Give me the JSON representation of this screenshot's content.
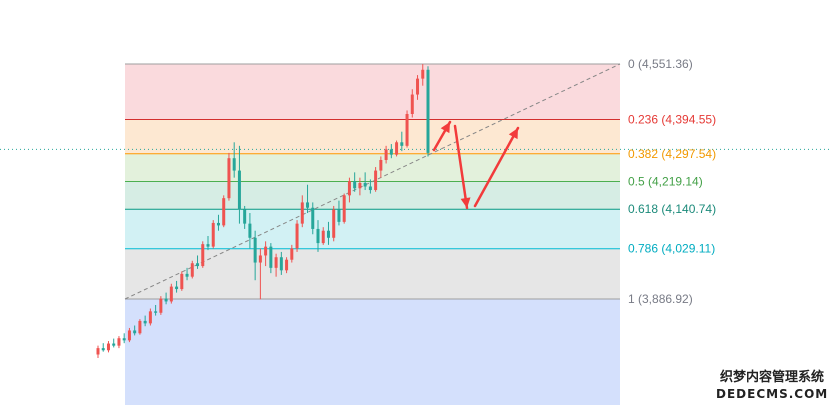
{
  "chart_data": {
    "type": "candlestick",
    "fib_levels": [
      {
        "ratio": "0",
        "price": "4,551.36",
        "value": 4551.36,
        "line_color": "#9e9e9e",
        "label_color": "#787b86",
        "fill": "#fadadd"
      },
      {
        "ratio": "0.236",
        "price": "4,394.55",
        "value": 4394.55,
        "line_color": "#d32f2f",
        "label_color": "#e53935",
        "fill": "#fde8d2"
      },
      {
        "ratio": "0.382",
        "price": "4,297.54",
        "value": 4297.54,
        "line_color": "#ff9800",
        "label_color": "#f29900",
        "fill": "#e3f1dc"
      },
      {
        "ratio": "0.5",
        "price": "4,219.14",
        "value": 4219.14,
        "line_color": "#4caf50",
        "label_color": "#43a047",
        "fill": "#d6ede4"
      },
      {
        "ratio": "0.618",
        "price": "4,140.74",
        "value": 4140.74,
        "line_color": "#089981",
        "label_color": "#1b8a7a",
        "fill": "#d2f1f4"
      },
      {
        "ratio": "0.786",
        "price": "4,029.11",
        "value": 4029.11,
        "line_color": "#00bcd4",
        "label_color": "#00acc1",
        "fill": "#e6e6e6"
      },
      {
        "ratio": "1",
        "price": "3,886.92",
        "value": 3886.92,
        "line_color": "#9e9e9e",
        "label_color": "#787b86",
        "fill": "#d4e0fc"
      }
    ],
    "price_range": [
      3700,
      4551.36
    ],
    "current_price": 4310,
    "candles": [
      [
        3730,
        3755,
        3720,
        3748
      ],
      [
        3748,
        3762,
        3738,
        3742
      ],
      [
        3742,
        3768,
        3736,
        3761
      ],
      [
        3761,
        3775,
        3750,
        3755
      ],
      [
        3755,
        3782,
        3748,
        3776
      ],
      [
        3776,
        3790,
        3762,
        3770
      ],
      [
        3770,
        3805,
        3765,
        3798
      ],
      [
        3798,
        3812,
        3784,
        3790
      ],
      [
        3790,
        3830,
        3786,
        3825
      ],
      [
        3825,
        3840,
        3810,
        3818
      ],
      [
        3818,
        3860,
        3812,
        3852
      ],
      [
        3852,
        3870,
        3840,
        3848
      ],
      [
        3848,
        3895,
        3842,
        3888
      ],
      [
        3888,
        3905,
        3872,
        3880
      ],
      [
        3880,
        3930,
        3874,
        3922
      ],
      [
        3922,
        3938,
        3905,
        3915
      ],
      [
        3915,
        3965,
        3910,
        3958
      ],
      [
        3958,
        3975,
        3940,
        3950
      ],
      [
        3950,
        3995,
        3945,
        3988
      ],
      [
        3988,
        4010,
        3972,
        3980
      ],
      [
        3980,
        4050,
        3975,
        4042
      ],
      [
        4042,
        4065,
        4025,
        4035
      ],
      [
        4035,
        4110,
        4030,
        4102
      ],
      [
        4102,
        4125,
        4080,
        4095
      ],
      [
        4095,
        4180,
        4090,
        4172
      ],
      [
        4172,
        4300,
        4165,
        4285
      ],
      [
        4285,
        4330,
        4230,
        4250
      ],
      [
        4250,
        4320,
        4100,
        4140
      ],
      [
        4140,
        4150,
        4085,
        4100
      ],
      [
        4100,
        4130,
        4030,
        4060
      ],
      [
        4060,
        4080,
        3940,
        3990
      ],
      [
        3990,
        4030,
        3886,
        4010
      ],
      [
        4010,
        4050,
        3980,
        4035
      ],
      [
        4035,
        4045,
        3960,
        3975
      ],
      [
        3975,
        4015,
        3950,
        4005
      ],
      [
        4005,
        4020,
        3955,
        3968
      ],
      [
        3968,
        4005,
        3960,
        3998
      ],
      [
        3998,
        4040,
        3990,
        4030
      ],
      [
        4030,
        4110,
        4020,
        4100
      ],
      [
        4100,
        4180,
        4090,
        4160
      ],
      [
        4160,
        4210,
        4130,
        4145
      ],
      [
        4145,
        4160,
        4070,
        4085
      ],
      [
        4085,
        4110,
        4020,
        4045
      ],
      [
        4045,
        4090,
        4040,
        4080
      ],
      [
        4080,
        4105,
        4040,
        4060
      ],
      [
        4060,
        4150,
        4050,
        4140
      ],
      [
        4140,
        4165,
        4095,
        4105
      ],
      [
        4105,
        4185,
        4100,
        4180
      ],
      [
        4180,
        4230,
        4160,
        4220
      ],
      [
        4220,
        4245,
        4190,
        4200
      ],
      [
        4200,
        4230,
        4180,
        4215
      ],
      [
        4215,
        4245,
        4195,
        4205
      ],
      [
        4205,
        4225,
        4185,
        4195
      ],
      [
        4195,
        4260,
        4190,
        4250
      ],
      [
        4250,
        4290,
        4230,
        4280
      ],
      [
        4280,
        4320,
        4270,
        4310
      ],
      [
        4310,
        4325,
        4285,
        4295
      ],
      [
        4295,
        4335,
        4290,
        4330
      ],
      [
        4330,
        4360,
        4305,
        4320
      ],
      [
        4320,
        4420,
        4315,
        4410
      ],
      [
        4410,
        4480,
        4400,
        4465
      ],
      [
        4465,
        4520,
        4450,
        4510
      ],
      [
        4510,
        4551,
        4490,
        4535
      ],
      [
        4535,
        4545,
        4290,
        4300
      ]
    ]
  },
  "watermark": {
    "main": "织梦内容管理系统",
    "sub": "DEDECMS.COM"
  }
}
